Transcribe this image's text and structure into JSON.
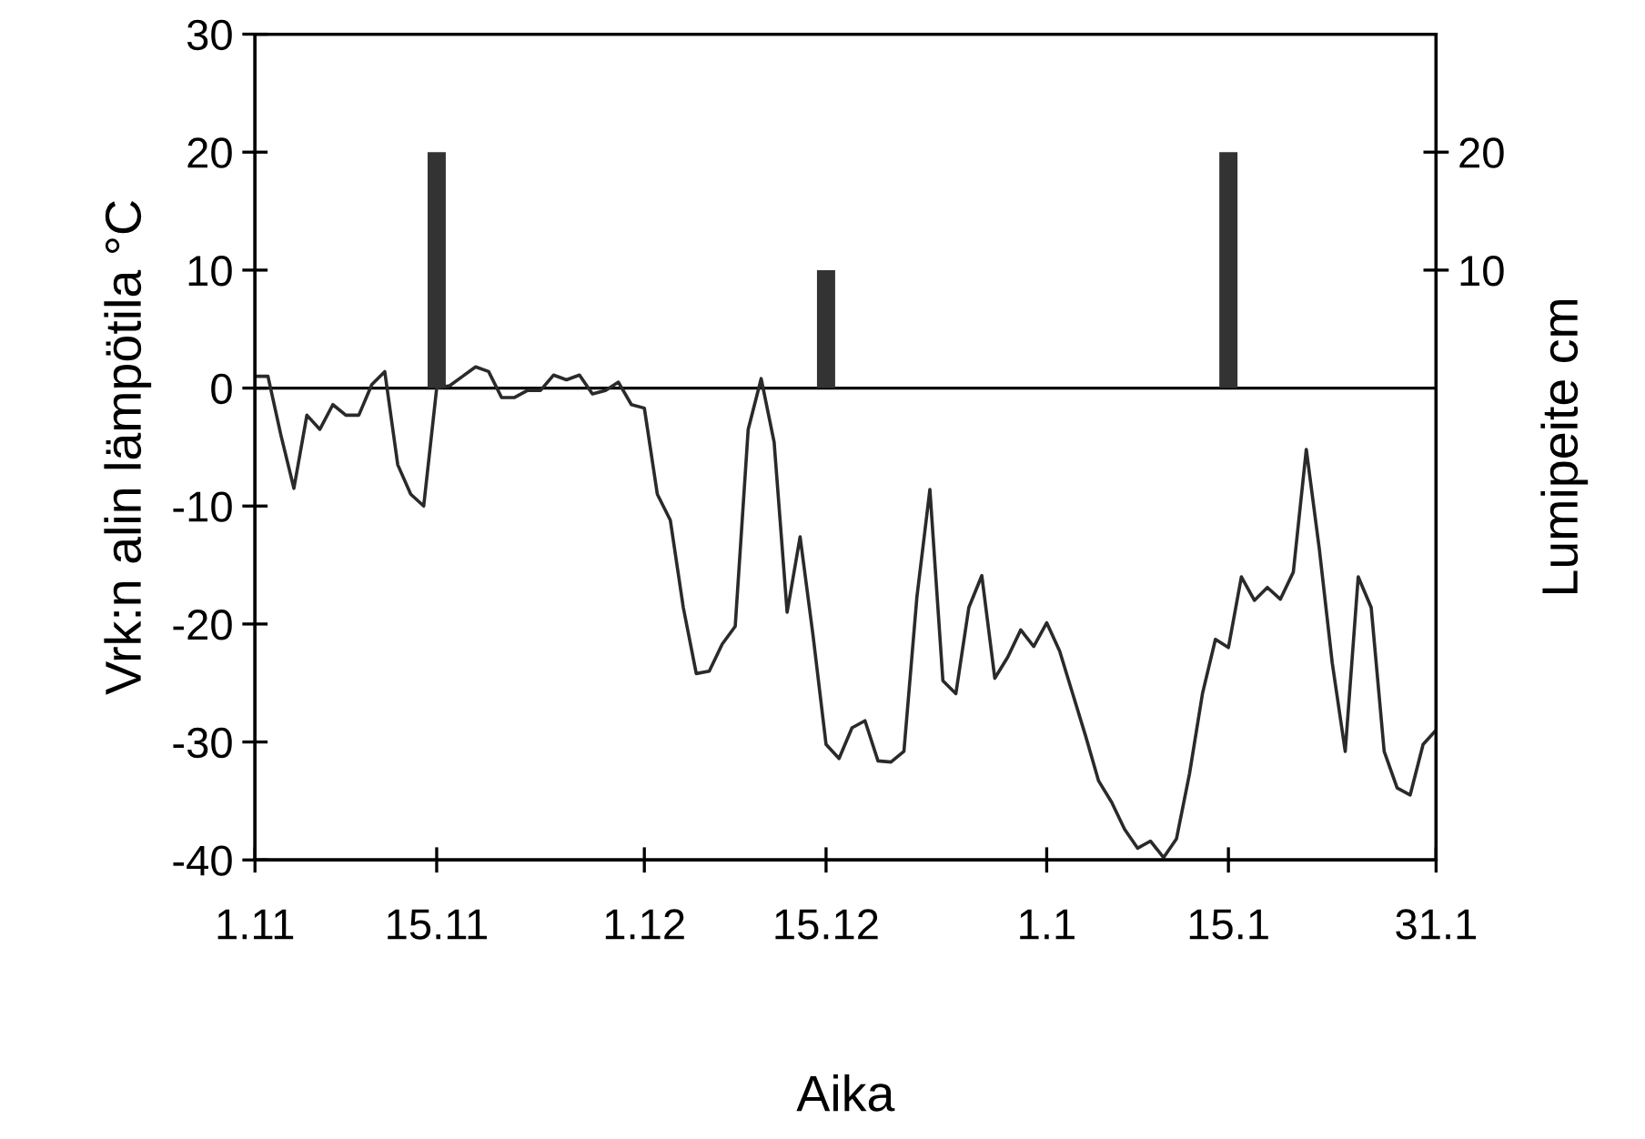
{
  "chart_data": {
    "type": "line",
    "xlabel": "Aika",
    "ylabel": "Vrk:n alin lämpötila °C",
    "y2label": "Lumipeite cm",
    "categories": [
      "1.11",
      null,
      null,
      null,
      null,
      null,
      null,
      null,
      null,
      null,
      null,
      null,
      null,
      null,
      "15.11",
      null,
      null,
      null,
      null,
      null,
      null,
      null,
      null,
      null,
      null,
      null,
      null,
      null,
      null,
      null,
      "1.12",
      null,
      null,
      null,
      null,
      null,
      null,
      null,
      null,
      null,
      null,
      null,
      null,
      null,
      "15.12",
      null,
      null,
      null,
      null,
      null,
      null,
      null,
      null,
      null,
      null,
      null,
      null,
      null,
      null,
      null,
      null,
      "1.1",
      null,
      null,
      null,
      null,
      null,
      null,
      null,
      null,
      null,
      null,
      null,
      null,
      null,
      "15.1",
      null,
      null,
      null,
      null,
      null,
      null,
      null,
      null,
      null,
      null,
      null,
      null,
      null,
      null,
      null,
      "31.1"
    ],
    "ylim": [
      -40,
      30
    ],
    "yticks": [
      -40,
      -30,
      -20,
      -10,
      0,
      10,
      20,
      30
    ],
    "y2lim": [
      -40,
      30
    ],
    "y2ticks": [
      10,
      20
    ],
    "grid": false,
    "legend": false,
    "ref_lines": [
      {
        "axis": "y",
        "value": 0,
        "color": "#000000"
      }
    ],
    "series": [
      {
        "color": "#2a2a2a",
        "values": [
          1,
          1,
          -4,
          -8.5,
          -2.3,
          -3.5,
          -1.4,
          -2.3,
          -2.3,
          0.3,
          1.4,
          -6.5,
          -9,
          -10,
          0,
          0.2,
          1,
          1.8,
          1.4,
          -0.8,
          -0.8,
          -0.2,
          -0.2,
          1.1,
          0.7,
          1.1,
          -0.5,
          -0.2,
          0.5,
          -1.4,
          -1.7,
          -9,
          -11.2,
          -18.6,
          -24.2,
          -24,
          -21.7,
          -20.2,
          -3.5,
          0.8,
          -4.6,
          -19,
          -12.6,
          -21,
          -30.2,
          -31.4,
          -28.8,
          -28.2,
          -31.6,
          -31.7,
          -30.8,
          -17.7,
          -8.6,
          -24.8,
          -25.9,
          -18.6,
          -15.9,
          -24.6,
          -22.8,
          -20.5,
          -21.9,
          -19.9,
          -22.3,
          -25.9,
          -29.5,
          -33.3,
          -35.1,
          -37.4,
          -39,
          -38.4,
          -39.8,
          -38.2,
          -32.7,
          -25.9,
          -21.3,
          -22,
          -16,
          -18,
          -16.9,
          -17.9,
          -15.6,
          -5.2,
          -13.6,
          -23.3,
          -30.8,
          -16,
          -18.6,
          -30.8,
          -33.9,
          -34.5,
          -30.2,
          -29
        ]
      },
      {
        "type": "bar",
        "axis": "y2",
        "color": "#333333",
        "values": [
          null,
          null,
          null,
          null,
          null,
          null,
          null,
          null,
          null,
          null,
          null,
          null,
          null,
          null,
          20,
          null,
          null,
          null,
          null,
          null,
          null,
          null,
          null,
          null,
          null,
          null,
          null,
          null,
          null,
          null,
          null,
          null,
          null,
          null,
          null,
          null,
          null,
          null,
          null,
          null,
          null,
          null,
          null,
          null,
          10,
          null,
          null,
          null,
          null,
          null,
          null,
          null,
          null,
          null,
          null,
          null,
          null,
          null,
          null,
          null,
          null,
          null,
          null,
          null,
          null,
          null,
          null,
          null,
          null,
          null,
          null,
          null,
          null,
          null,
          null,
          20,
          null,
          null,
          null,
          null,
          null,
          null,
          null,
          null,
          null,
          null,
          null,
          null,
          null,
          null,
          null,
          null
        ]
      }
    ]
  }
}
